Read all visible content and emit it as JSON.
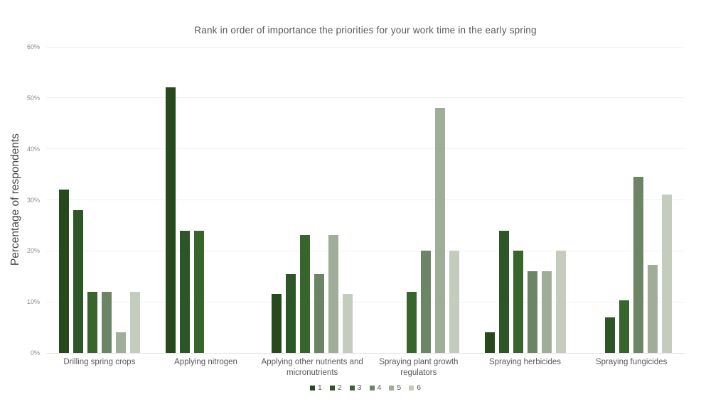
{
  "chart_data": {
    "type": "bar",
    "title": "Rank in order of importance the priorities for your work time in the early spring",
    "ylabel": "Percentage of respondents",
    "xlabel": "",
    "ylim": [
      0,
      60
    ],
    "ytick_step": 10,
    "ytick_labels": [
      "0%",
      "10%",
      "20%",
      "30%",
      "40%",
      "50%",
      "60%"
    ],
    "grid": true,
    "legend_position": "bottom",
    "categories": [
      "Drilling spring crops",
      "Applying nitrogen",
      "Applying other nutrients and micronutrients",
      "Spraying plant growth regulators",
      "Spraying herbicides",
      "Spraying fungicides"
    ],
    "series": [
      {
        "name": "1",
        "color": "#274a1d",
        "values": [
          32,
          52,
          11.5,
          0,
          4,
          0
        ]
      },
      {
        "name": "2",
        "color": "#2d5626",
        "values": [
          28,
          24,
          15.4,
          0,
          24,
          6.9
        ]
      },
      {
        "name": "3",
        "color": "#37652c",
        "values": [
          12,
          24,
          23.1,
          12,
          20,
          10.3
        ]
      },
      {
        "name": "4",
        "color": "#6c8565",
        "values": [
          12,
          0,
          15.4,
          20,
          16,
          34.5
        ]
      },
      {
        "name": "5",
        "color": "#a0ad99",
        "values": [
          4,
          0,
          23.1,
          48,
          16,
          17.2
        ]
      },
      {
        "name": "6",
        "color": "#c4ccbd",
        "values": [
          12,
          0,
          11.5,
          20,
          20,
          31
        ]
      }
    ],
    "colors": {
      "title_text": "#595959",
      "axis_title_text": "#474747",
      "tick_text": "#8c8c8c",
      "category_text": "#595959",
      "gridline": "#f0f0f0",
      "axis_line": "#e0e0e0",
      "background": "#ffffff"
    }
  }
}
